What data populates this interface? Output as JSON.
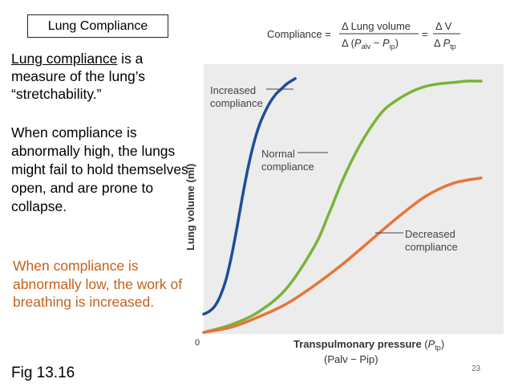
{
  "slide": {
    "title": "Lung Compliance",
    "para1_underlined": "Lung compliance",
    "para1_rest": " is a measure of the lung’s “stretchability.”",
    "para2": "When compliance is abnormally high, the lungs might fail to hold themselves open, and are prone to collapse.",
    "para3": "When compliance is abnormally low, the work of breathing is increased.",
    "figure_label": "Fig 13.16",
    "page_number": "23"
  },
  "formula": {
    "lhs": "Compliance =",
    "num1": "Δ Lung volume",
    "den1_prefix": "Δ (",
    "den1_p1": "P",
    "den1_s1": "alv",
    "den1_mid": " − ",
    "den1_p2": "P",
    "den1_s2": "ip",
    "den1_suffix": ")",
    "eq2": "=",
    "num2": "Δ V",
    "den2_prefix": "Δ ",
    "den2_p": "P",
    "den2_s": "tp"
  },
  "colors": {
    "increased": "#1f4e96",
    "normal": "#7ab23a",
    "decreased": "#e8733a",
    "orange_text": "#c4601b",
    "chart_bg": "#ececec"
  },
  "chart_data": {
    "type": "line",
    "title": "",
    "xlabel": "Transpulmonary pressure",
    "xlabel_italic": "P",
    "xlabel_sub": "tp",
    "xlabel_line2": "(Palv − Pip)",
    "ylabel": "Lung volume (ml)",
    "x_origin_label": "0",
    "xlim": [
      0,
      100
    ],
    "ylim": [
      0,
      100
    ],
    "series": [
      {
        "name": "Increased compliance",
        "name_lines": [
          "Increased",
          "compliance"
        ],
        "color": "#1f4e96",
        "x": [
          0,
          2,
          4,
          6,
          8,
          10,
          12,
          14,
          16,
          18,
          20,
          22,
          24,
          26,
          28,
          30,
          33
        ],
        "y": [
          7,
          8,
          10,
          14,
          20,
          29,
          40,
          52,
          63,
          72,
          79,
          84,
          88,
          91,
          93,
          95,
          97
        ]
      },
      {
        "name": "Normal compliance",
        "name_lines": [
          "Normal",
          "compliance"
        ],
        "color": "#7ab23a",
        "x": [
          0,
          10,
          20,
          30,
          40,
          45,
          50,
          55,
          60,
          65,
          70,
          75,
          80,
          85,
          90,
          95,
          100
        ],
        "y": [
          0,
          3,
          8,
          17,
          33,
          45,
          58,
          69,
          78,
          85,
          89,
          92,
          94,
          95,
          95.5,
          96,
          96
        ]
      },
      {
        "name": "Decreased compliance",
        "name_lines": [
          "Decreased",
          "compliance"
        ],
        "color": "#e8733a",
        "x": [
          0,
          10,
          20,
          30,
          40,
          50,
          60,
          70,
          80,
          90,
          100
        ],
        "y": [
          0,
          2,
          6,
          11,
          18,
          26,
          35,
          44,
          52,
          57,
          59
        ]
      }
    ]
  }
}
